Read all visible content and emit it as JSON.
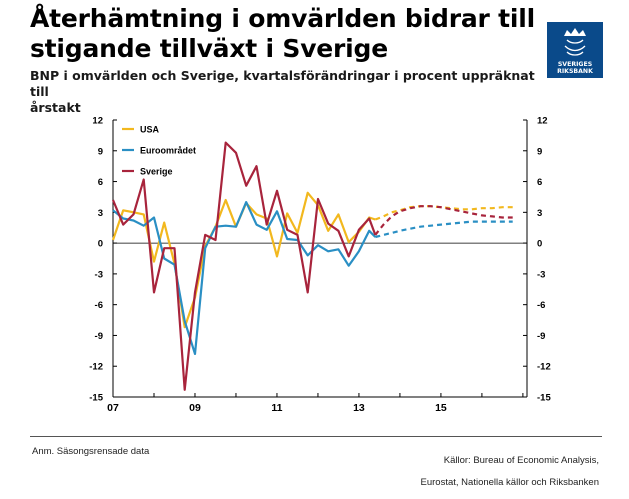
{
  "header": {
    "title_line1": "Återhämtning i omvärlden bidrar till",
    "title_line2": "stigande tillväxt i Sverige",
    "subtitle_line1": "BNP i omvärlden och Sverige, kvartalsförändringar i procent uppräknat till",
    "subtitle_line2": "årstakt"
  },
  "logo": {
    "text_line1": "SVERIGES",
    "text_line2": "RIKSBANK",
    "color": "#0a4a8a"
  },
  "footer": {
    "note": "Anm. Säsongsrensade data",
    "source_line1": "Källor: Bureau of Economic Analysis,",
    "source_line2": "Eurostat, Nationella källor och Riksbanken"
  },
  "chart_data": {
    "type": "line",
    "ylim": [
      -15,
      12
    ],
    "yticks": [
      "12",
      "9",
      "6",
      "3",
      "0",
      "-3",
      "-6",
      "-9",
      "-12",
      "-15"
    ],
    "xlim": [
      2007,
      2017.1
    ],
    "xticks": [
      {
        "x": 2007,
        "label": "07"
      },
      {
        "x": 2009,
        "label": "09"
      },
      {
        "x": 2011,
        "label": "11"
      },
      {
        "x": 2013,
        "label": "13"
      },
      {
        "x": 2015,
        "label": "15"
      }
    ],
    "forecast_start": 2013.4,
    "legend": [
      "USA",
      "Euroområdet",
      "Sverige"
    ],
    "series": [
      {
        "name": "USA",
        "color": "#f2b81e",
        "x": [
          2007.0,
          2007.25,
          2007.5,
          2007.75,
          2008.0,
          2008.25,
          2008.5,
          2008.75,
          2009.0,
          2009.25,
          2009.5,
          2009.75,
          2010.0,
          2010.25,
          2010.5,
          2010.75,
          2011.0,
          2011.25,
          2011.5,
          2011.75,
          2012.0,
          2012.25,
          2012.5,
          2012.75,
          2013.0,
          2013.25,
          2013.4,
          2013.6,
          2013.8,
          2014.0,
          2014.25,
          2014.5,
          2014.75,
          2015.0,
          2015.25,
          2015.5,
          2015.75,
          2016.0,
          2016.25,
          2016.5,
          2016.75
        ],
        "y": [
          0.3,
          3.2,
          3.0,
          2.8,
          -1.8,
          2.0,
          -2.0,
          -8.2,
          -5.3,
          -0.3,
          1.6,
          4.2,
          1.6,
          3.9,
          2.8,
          2.4,
          -1.3,
          2.9,
          1.0,
          4.9,
          3.7,
          1.2,
          2.8,
          0.1,
          1.1,
          2.5,
          2.3,
          2.6,
          3.0,
          3.2,
          3.5,
          3.6,
          3.6,
          3.5,
          3.4,
          3.3,
          3.3,
          3.4,
          3.4,
          3.5,
          3.5
        ]
      },
      {
        "name": "Euroområdet",
        "color": "#2a8fc4",
        "x": [
          2007.0,
          2007.25,
          2007.5,
          2007.75,
          2008.0,
          2008.25,
          2008.5,
          2008.75,
          2009.0,
          2009.25,
          2009.5,
          2009.75,
          2010.0,
          2010.25,
          2010.5,
          2010.75,
          2011.0,
          2011.25,
          2011.5,
          2011.75,
          2012.0,
          2012.25,
          2012.5,
          2012.75,
          2013.0,
          2013.25,
          2013.4,
          2013.6,
          2013.8,
          2014.0,
          2014.25,
          2014.5,
          2014.75,
          2015.0,
          2015.25,
          2015.5,
          2015.75,
          2016.0,
          2016.25,
          2016.5,
          2016.75
        ],
        "y": [
          3.2,
          2.4,
          2.2,
          1.7,
          2.5,
          -1.5,
          -2.1,
          -7.6,
          -10.8,
          -0.5,
          1.6,
          1.7,
          1.6,
          4.0,
          1.8,
          1.3,
          3.1,
          0.4,
          0.3,
          -1.2,
          -0.2,
          -0.8,
          -0.6,
          -2.2,
          -0.8,
          1.2,
          0.6,
          0.8,
          1.0,
          1.2,
          1.4,
          1.6,
          1.7,
          1.8,
          1.9,
          2.0,
          2.1,
          2.1,
          2.1,
          2.1,
          2.1
        ]
      },
      {
        "name": "Sverige",
        "color": "#a8243c",
        "x": [
          2007.0,
          2007.25,
          2007.5,
          2007.75,
          2008.0,
          2008.25,
          2008.5,
          2008.75,
          2009.0,
          2009.25,
          2009.5,
          2009.75,
          2010.0,
          2010.25,
          2010.5,
          2010.75,
          2011.0,
          2011.25,
          2011.5,
          2011.75,
          2012.0,
          2012.25,
          2012.5,
          2012.75,
          2013.0,
          2013.25,
          2013.4,
          2013.6,
          2013.8,
          2014.0,
          2014.25,
          2014.5,
          2014.75,
          2015.0,
          2015.25,
          2015.5,
          2015.75,
          2016.0,
          2016.25,
          2016.5,
          2016.75
        ],
        "y": [
          4.2,
          1.8,
          2.8,
          6.2,
          -4.8,
          -0.5,
          -0.5,
          -14.3,
          -4.8,
          0.8,
          0.3,
          9.8,
          8.8,
          5.6,
          7.5,
          1.8,
          5.1,
          1.3,
          0.8,
          -4.8,
          4.3,
          1.9,
          1.2,
          -1.3,
          1.3,
          2.4,
          0.8,
          1.8,
          2.6,
          3.1,
          3.4,
          3.6,
          3.6,
          3.5,
          3.3,
          3.1,
          2.9,
          2.7,
          2.6,
          2.5,
          2.5
        ]
      }
    ]
  }
}
